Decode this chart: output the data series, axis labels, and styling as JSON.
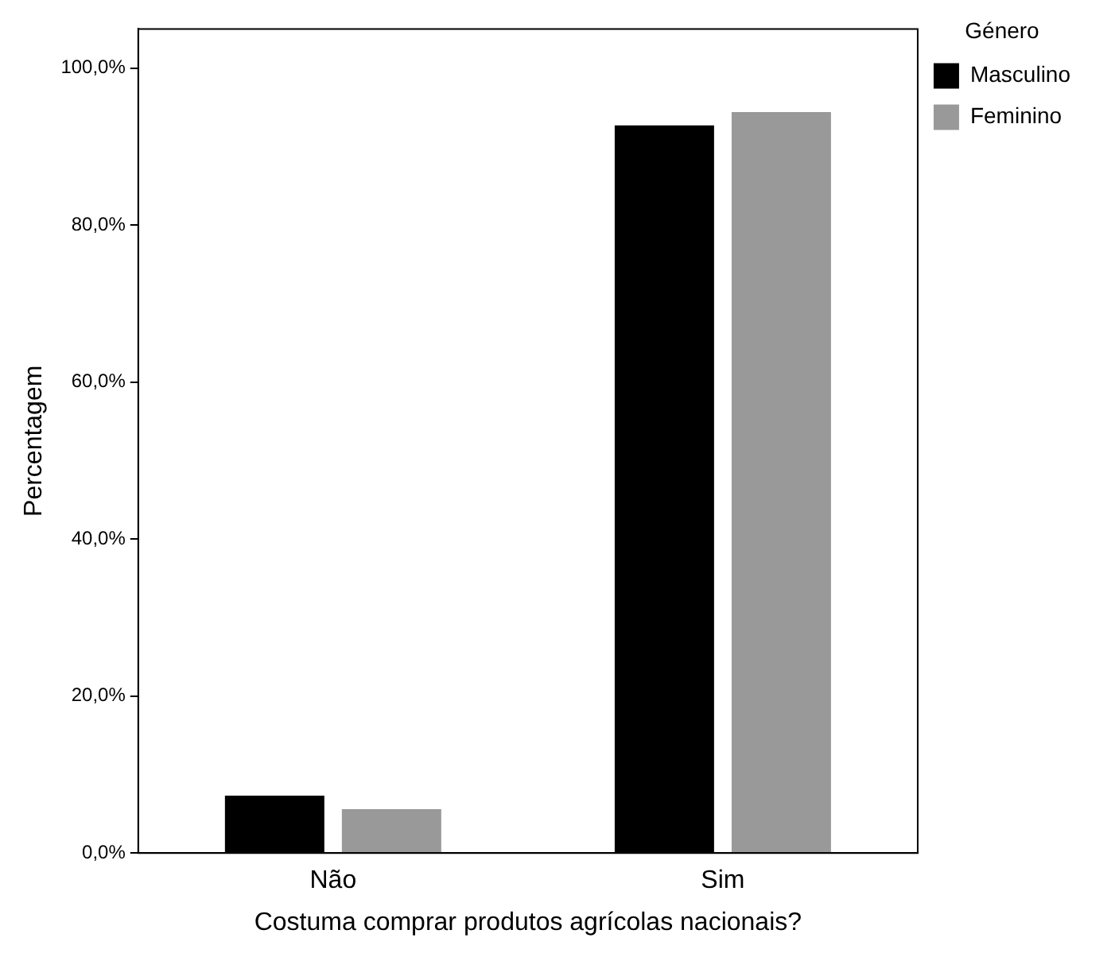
{
  "chart_data": {
    "type": "bar",
    "xlabel": "Costuma comprar produtos agrícolas nacionais?",
    "ylabel": "Percentagem",
    "legend_title": "Género",
    "categories": [
      "Não",
      "Sim"
    ],
    "series": [
      {
        "name": "Masculino",
        "color": "#000000",
        "values": [
          7.3,
          92.7
        ]
      },
      {
        "name": "Feminino",
        "color": "#999999",
        "values": [
          5.6,
          94.4
        ]
      }
    ],
    "ylim": [
      0,
      105
    ],
    "yticks": [
      {
        "value": 0,
        "label": "0,0%"
      },
      {
        "value": 20,
        "label": "20,0%"
      },
      {
        "value": 40,
        "label": "40,0%"
      },
      {
        "value": 60,
        "label": "60,0%"
      },
      {
        "value": 80,
        "label": "80,0%"
      },
      {
        "value": 100,
        "label": "100,0%"
      }
    ],
    "grid": false,
    "legend": "top right"
  }
}
